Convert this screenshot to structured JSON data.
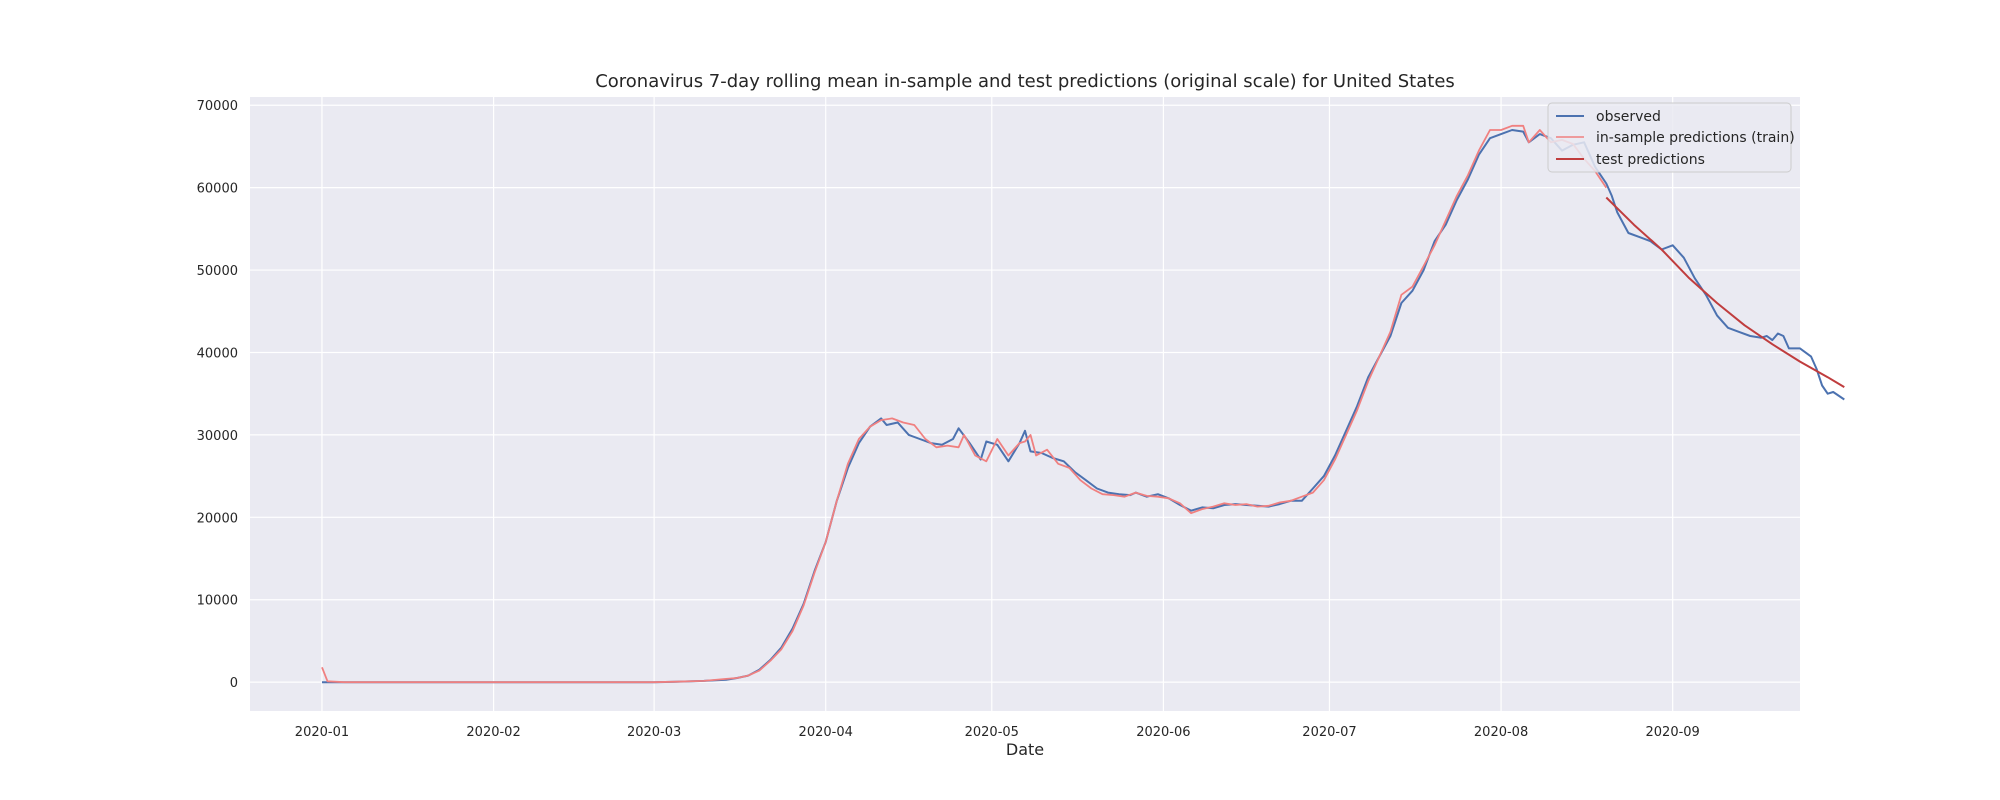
{
  "chart_data": {
    "type": "line",
    "title": "Coronavirus 7-day rolling mean in-sample and test predictions (original scale) for United States",
    "xlabel": "Date",
    "ylabel": "",
    "x_ticks": [
      "2020-01",
      "2020-02",
      "2020-03",
      "2020-04",
      "2020-05",
      "2020-06",
      "2020-07",
      "2020-08",
      "2020-09"
    ],
    "y_ticks": [
      "0",
      "10000",
      "20000",
      "30000",
      "40000",
      "50000",
      "60000",
      "70000"
    ],
    "xlim": [
      "2019-12-19",
      "2020-09-24"
    ],
    "ylim": [
      -3500,
      71000
    ],
    "grid": true,
    "legend_position": "top-right",
    "colors": {
      "background": "#eaeaf2",
      "grid": "#ffffff",
      "observed": "#4c72b0",
      "train": "#f08080",
      "test": "#c03d3e"
    },
    "series": [
      {
        "name": "observed",
        "key": "observed",
        "points": [
          [
            "2020-01-01",
            0
          ],
          [
            "2020-01-02",
            0
          ],
          [
            "2020-02-01",
            0
          ],
          [
            "2020-03-01",
            0
          ],
          [
            "2020-03-05",
            50
          ],
          [
            "2020-03-10",
            150
          ],
          [
            "2020-03-14",
            300
          ],
          [
            "2020-03-16",
            500
          ],
          [
            "2020-03-18",
            800
          ],
          [
            "2020-03-20",
            1500
          ],
          [
            "2020-03-22",
            2700
          ],
          [
            "2020-03-24",
            4200
          ],
          [
            "2020-03-26",
            6500
          ],
          [
            "2020-03-28",
            9500
          ],
          [
            "2020-03-30",
            13500
          ],
          [
            "2020-04-01",
            17000
          ],
          [
            "2020-04-03",
            22000
          ],
          [
            "2020-04-05",
            26000
          ],
          [
            "2020-04-07",
            29000
          ],
          [
            "2020-04-09",
            31000
          ],
          [
            "2020-04-11",
            32000
          ],
          [
            "2020-04-12",
            31200
          ],
          [
            "2020-04-14",
            31500
          ],
          [
            "2020-04-16",
            30000
          ],
          [
            "2020-04-18",
            29500
          ],
          [
            "2020-04-20",
            29000
          ],
          [
            "2020-04-22",
            28800
          ],
          [
            "2020-04-24",
            29500
          ],
          [
            "2020-04-25",
            30800
          ],
          [
            "2020-04-27",
            29000
          ],
          [
            "2020-04-29",
            27000
          ],
          [
            "2020-04-30",
            29200
          ],
          [
            "2020-05-02",
            28800
          ],
          [
            "2020-05-04",
            26800
          ],
          [
            "2020-05-06",
            29000
          ],
          [
            "2020-05-07",
            30500
          ],
          [
            "2020-05-08",
            28000
          ],
          [
            "2020-05-10",
            27800
          ],
          [
            "2020-05-12",
            27200
          ],
          [
            "2020-05-14",
            26800
          ],
          [
            "2020-05-16",
            25500
          ],
          [
            "2020-05-18",
            24500
          ],
          [
            "2020-05-20",
            23500
          ],
          [
            "2020-05-22",
            23000
          ],
          [
            "2020-05-24",
            22800
          ],
          [
            "2020-05-26",
            22700
          ],
          [
            "2020-05-27",
            23000
          ],
          [
            "2020-05-29",
            22500
          ],
          [
            "2020-05-31",
            22800
          ],
          [
            "2020-06-02",
            22300
          ],
          [
            "2020-06-04",
            21500
          ],
          [
            "2020-06-06",
            20800
          ],
          [
            "2020-06-08",
            21200
          ],
          [
            "2020-06-10",
            21100
          ],
          [
            "2020-06-12",
            21500
          ],
          [
            "2020-06-14",
            21600
          ],
          [
            "2020-06-16",
            21500
          ],
          [
            "2020-06-18",
            21400
          ],
          [
            "2020-06-20",
            21300
          ],
          [
            "2020-06-22",
            21600
          ],
          [
            "2020-06-24",
            22000
          ],
          [
            "2020-06-26",
            22000
          ],
          [
            "2020-06-28",
            23500
          ],
          [
            "2020-06-30",
            25000
          ],
          [
            "2020-07-02",
            27500
          ],
          [
            "2020-07-04",
            30500
          ],
          [
            "2020-07-06",
            33500
          ],
          [
            "2020-07-08",
            37000
          ],
          [
            "2020-07-10",
            39500
          ],
          [
            "2020-07-12",
            42000
          ],
          [
            "2020-07-14",
            46000
          ],
          [
            "2020-07-16",
            47500
          ],
          [
            "2020-07-18",
            50000
          ],
          [
            "2020-07-20",
            53500
          ],
          [
            "2020-07-22",
            55500
          ],
          [
            "2020-07-24",
            58500
          ],
          [
            "2020-07-26",
            61000
          ],
          [
            "2020-07-28",
            64000
          ],
          [
            "2020-07-30",
            66000
          ],
          [
            "2020-08-01",
            66500
          ],
          [
            "2020-08-03",
            67000
          ],
          [
            "2020-08-05",
            66800
          ],
          [
            "2020-08-06",
            65500
          ],
          [
            "2020-08-08",
            66500
          ],
          [
            "2020-08-10",
            66000
          ],
          [
            "2020-08-12",
            64500
          ],
          [
            "2020-08-14",
            65200
          ],
          [
            "2020-08-16",
            65500
          ],
          [
            "2020-08-18",
            62500
          ],
          [
            "2020-08-20",
            60500
          ],
          [
            "2020-08-21",
            59000
          ],
          [
            "2020-08-22",
            57000
          ],
          [
            "2020-08-24",
            54500
          ],
          [
            "2020-08-26",
            54000
          ],
          [
            "2020-08-28",
            53500
          ],
          [
            "2020-08-30",
            52500
          ],
          [
            "2020-09-01",
            53000
          ],
          [
            "2020-09-03",
            51500
          ],
          [
            "2020-09-05",
            49000
          ],
          [
            "2020-09-07",
            47000
          ],
          [
            "2020-09-09",
            44500
          ],
          [
            "2020-09-11",
            43000
          ],
          [
            "2020-09-13",
            42500
          ],
          [
            "2020-09-15",
            42000
          ],
          [
            "2020-09-17",
            41800
          ],
          [
            "2020-09-18",
            42000
          ],
          [
            "2020-09-19",
            41500
          ],
          [
            "2020-09-20",
            42300
          ],
          [
            "2020-09-21",
            42000
          ],
          [
            "2020-09-22",
            40500
          ],
          [
            "2020-09-24",
            40500
          ],
          [
            "2020-09-26",
            39500
          ],
          [
            "2020-09-27",
            38000
          ],
          [
            "2020-09-28",
            36000
          ],
          [
            "2020-09-29",
            35000
          ],
          [
            "2020-09-30",
            35200
          ],
          [
            "2020-10-02",
            34300
          ]
        ]
      },
      {
        "name": "in-sample predictions (train)",
        "key": "train",
        "points": [
          [
            "2020-01-01",
            1800
          ],
          [
            "2020-01-02",
            100
          ],
          [
            "2020-01-05",
            0
          ],
          [
            "2020-02-01",
            0
          ],
          [
            "2020-03-01",
            0
          ],
          [
            "2020-03-05",
            50
          ],
          [
            "2020-03-10",
            150
          ],
          [
            "2020-03-14",
            400
          ],
          [
            "2020-03-16",
            500
          ],
          [
            "2020-03-18",
            800
          ],
          [
            "2020-03-20",
            1400
          ],
          [
            "2020-03-22",
            2600
          ],
          [
            "2020-03-24",
            4000
          ],
          [
            "2020-03-26",
            6200
          ],
          [
            "2020-03-28",
            9300
          ],
          [
            "2020-03-30",
            13300
          ],
          [
            "2020-04-01",
            17000
          ],
          [
            "2020-04-03",
            22000
          ],
          [
            "2020-04-05",
            26500
          ],
          [
            "2020-04-07",
            29500
          ],
          [
            "2020-04-09",
            31000
          ],
          [
            "2020-04-11",
            31800
          ],
          [
            "2020-04-13",
            32000
          ],
          [
            "2020-04-15",
            31500
          ],
          [
            "2020-04-17",
            31200
          ],
          [
            "2020-04-19",
            29500
          ],
          [
            "2020-04-21",
            28500
          ],
          [
            "2020-04-23",
            28700
          ],
          [
            "2020-04-25",
            28500
          ],
          [
            "2020-04-26",
            30000
          ],
          [
            "2020-04-28",
            27500
          ],
          [
            "2020-04-30",
            26800
          ],
          [
            "2020-05-02",
            29500
          ],
          [
            "2020-05-04",
            27500
          ],
          [
            "2020-05-06",
            29000
          ],
          [
            "2020-05-07",
            29200
          ],
          [
            "2020-05-08",
            30000
          ],
          [
            "2020-05-09",
            27500
          ],
          [
            "2020-05-11",
            28200
          ],
          [
            "2020-05-13",
            26500
          ],
          [
            "2020-05-15",
            26000
          ],
          [
            "2020-05-17",
            24500
          ],
          [
            "2020-05-19",
            23500
          ],
          [
            "2020-05-21",
            22800
          ],
          [
            "2020-05-23",
            22700
          ],
          [
            "2020-05-25",
            22500
          ],
          [
            "2020-05-27",
            23000
          ],
          [
            "2020-05-29",
            22600
          ],
          [
            "2020-05-31",
            22500
          ],
          [
            "2020-06-02",
            22300
          ],
          [
            "2020-06-04",
            21700
          ],
          [
            "2020-06-06",
            20500
          ],
          [
            "2020-06-08",
            21000
          ],
          [
            "2020-06-10",
            21300
          ],
          [
            "2020-06-12",
            21700
          ],
          [
            "2020-06-14",
            21500
          ],
          [
            "2020-06-16",
            21600
          ],
          [
            "2020-06-18",
            21300
          ],
          [
            "2020-06-20",
            21400
          ],
          [
            "2020-06-22",
            21800
          ],
          [
            "2020-06-24",
            22000
          ],
          [
            "2020-06-26",
            22500
          ],
          [
            "2020-06-28",
            23000
          ],
          [
            "2020-06-30",
            24500
          ],
          [
            "2020-07-02",
            27000
          ],
          [
            "2020-07-04",
            30000
          ],
          [
            "2020-07-06",
            33000
          ],
          [
            "2020-07-08",
            36500
          ],
          [
            "2020-07-10",
            39500
          ],
          [
            "2020-07-12",
            42500
          ],
          [
            "2020-07-14",
            47000
          ],
          [
            "2020-07-16",
            48000
          ],
          [
            "2020-07-18",
            50500
          ],
          [
            "2020-07-20",
            53000
          ],
          [
            "2020-07-22",
            56000
          ],
          [
            "2020-07-24",
            59000
          ],
          [
            "2020-07-26",
            61500
          ],
          [
            "2020-07-28",
            64500
          ],
          [
            "2020-07-30",
            67000
          ],
          [
            "2020-08-01",
            67000
          ],
          [
            "2020-08-03",
            67500
          ],
          [
            "2020-08-05",
            67500
          ],
          [
            "2020-08-06",
            65500
          ],
          [
            "2020-08-08",
            67000
          ],
          [
            "2020-08-10",
            65500
          ],
          [
            "2020-08-12",
            65800
          ],
          [
            "2020-08-14",
            65300
          ],
          [
            "2020-08-16",
            63500
          ],
          [
            "2020-08-18",
            62000
          ],
          [
            "2020-08-20",
            60000
          ]
        ]
      },
      {
        "name": "test predictions",
        "key": "test",
        "points": [
          [
            "2020-08-20",
            58800
          ],
          [
            "2020-08-25",
            55500
          ],
          [
            "2020-08-30",
            52500
          ],
          [
            "2020-09-04",
            49000
          ],
          [
            "2020-09-09",
            46000
          ],
          [
            "2020-09-14",
            43300
          ],
          [
            "2020-09-19",
            41000
          ],
          [
            "2020-09-24",
            38900
          ],
          [
            "2020-09-29",
            37000
          ],
          [
            "2020-10-02",
            35800
          ]
        ]
      }
    ]
  }
}
